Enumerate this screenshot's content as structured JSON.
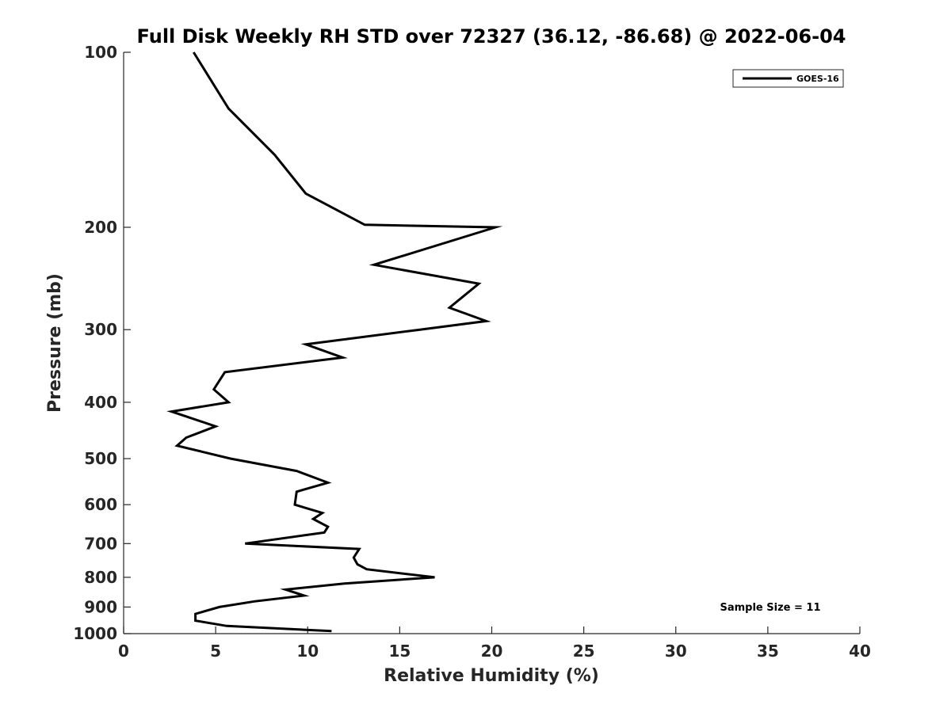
{
  "chart_data": {
    "type": "line",
    "title": "Full Disk Weekly RH STD over 72327 (36.12, -86.68) @ 2022-06-04",
    "xlabel": "Relative Humidity (%)",
    "ylabel": "Pressure (mb)",
    "xlim": [
      0,
      40
    ],
    "ylim": [
      100,
      1000
    ],
    "y_scale": "log",
    "y_reversed": true,
    "x_ticks": [
      0,
      5,
      10,
      15,
      20,
      25,
      30,
      35,
      40
    ],
    "x_tick_labels": [
      "0",
      "5",
      "10",
      "15",
      "20",
      "25",
      "30",
      "35",
      "40"
    ],
    "y_ticks": [
      100,
      200,
      300,
      400,
      500,
      600,
      700,
      800,
      900,
      1000
    ],
    "y_tick_labels": [
      "100",
      "200",
      "300",
      "400",
      "500",
      "600",
      "700",
      "800",
      "900",
      "1000"
    ],
    "grid": false,
    "legend_position": "top-right",
    "series": [
      {
        "name": "GOES-16",
        "color": "#000000",
        "points": [
          [
            3.8,
            100
          ],
          [
            5.7,
            125
          ],
          [
            8.2,
            150
          ],
          [
            9.9,
            175
          ],
          [
            13.1,
            198
          ],
          [
            20.2,
            200
          ],
          [
            13.6,
            232
          ],
          [
            19.3,
            250
          ],
          [
            17.7,
            275
          ],
          [
            19.7,
            290
          ],
          [
            16.1,
            300
          ],
          [
            9.9,
            318
          ],
          [
            11.9,
            335
          ],
          [
            5.5,
            355
          ],
          [
            4.9,
            380
          ],
          [
            5.7,
            400
          ],
          [
            2.6,
            415
          ],
          [
            5.0,
            440
          ],
          [
            3.4,
            460
          ],
          [
            2.9,
            475
          ],
          [
            5.8,
            500
          ],
          [
            9.4,
            525
          ],
          [
            11.1,
            550
          ],
          [
            9.4,
            570
          ],
          [
            9.3,
            600
          ],
          [
            10.8,
            620
          ],
          [
            10.3,
            635
          ],
          [
            11.1,
            655
          ],
          [
            10.9,
            670
          ],
          [
            6.6,
            700
          ],
          [
            12.8,
            715
          ],
          [
            12.5,
            740
          ],
          [
            12.7,
            760
          ],
          [
            13.2,
            775
          ],
          [
            16.9,
            800
          ],
          [
            12.0,
            820
          ],
          [
            8.8,
            840
          ],
          [
            9.8,
            860
          ],
          [
            7.1,
            880
          ],
          [
            5.2,
            900
          ],
          [
            3.9,
            925
          ],
          [
            3.9,
            950
          ],
          [
            5.6,
            970
          ],
          [
            11.3,
            990
          ]
        ]
      }
    ],
    "annotations": [
      "Sample Size = 11"
    ]
  }
}
